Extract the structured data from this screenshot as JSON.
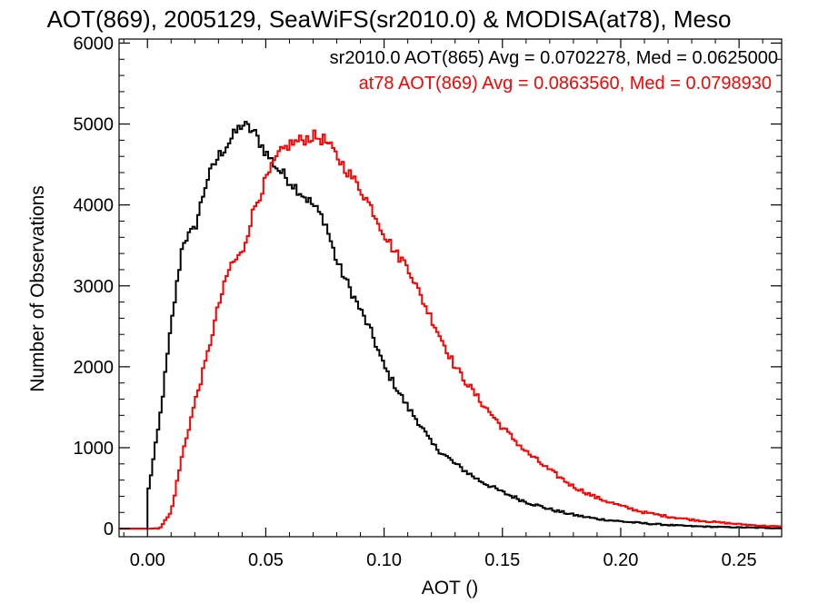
{
  "chart_data": {
    "type": "line",
    "title": "AOT(869), 2005129, SeaWiFS(sr2010.0) & MODISA(at78), Meso",
    "xlabel": "AOT ()",
    "ylabel": "Number of Observations",
    "xlim": [
      -0.012,
      0.268
    ],
    "ylim": [
      -100,
      6050
    ],
    "xticks": [
      0.0,
      0.05,
      0.1,
      0.15,
      0.2,
      0.25
    ],
    "xtick_labels": [
      "0.00",
      "0.05",
      "0.10",
      "0.15",
      "0.20",
      "0.25"
    ],
    "yticks": [
      0,
      1000,
      2000,
      3000,
      4000,
      5000,
      6000
    ],
    "ytick_labels": [
      "0",
      "1000",
      "2000",
      "3000",
      "4000",
      "5000",
      "6000"
    ],
    "grid": false,
    "legend_position": "top-right",
    "series": [
      {
        "name": "sr2010.0",
        "legend": "sr2010.0 AOT(865) Avg = 0.0702278, Med = 0.0625000",
        "color": "#000000",
        "x": [
          0.0,
          0.005,
          0.01,
          0.015,
          0.02,
          0.025,
          0.03,
          0.035,
          0.04,
          0.045,
          0.05,
          0.055,
          0.06,
          0.065,
          0.07,
          0.075,
          0.08,
          0.085,
          0.09,
          0.095,
          0.1,
          0.105,
          0.11,
          0.115,
          0.12,
          0.13,
          0.14,
          0.15,
          0.16,
          0.17,
          0.18,
          0.19,
          0.2,
          0.21,
          0.22,
          0.23,
          0.24,
          0.25,
          0.26,
          0.268
        ],
        "y": [
          400,
          1300,
          2500,
          3550,
          3700,
          4300,
          4600,
          4800,
          5000,
          4900,
          4650,
          4450,
          4300,
          4150,
          4000,
          3800,
          3300,
          3000,
          2700,
          2400,
          2000,
          1750,
          1500,
          1300,
          1050,
          800,
          600,
          450,
          330,
          240,
          170,
          120,
          90,
          65,
          45,
          30,
          22,
          15,
          10,
          5
        ]
      },
      {
        "name": "at78",
        "legend": "at78 AOT(869) Avg = 0.0863560, Med = 0.0798930",
        "color": "#ff0000",
        "x": [
          0.0,
          0.005,
          0.01,
          0.015,
          0.02,
          0.025,
          0.03,
          0.035,
          0.04,
          0.045,
          0.05,
          0.055,
          0.06,
          0.065,
          0.07,
          0.075,
          0.08,
          0.085,
          0.09,
          0.095,
          0.1,
          0.105,
          0.11,
          0.115,
          0.12,
          0.125,
          0.13,
          0.14,
          0.15,
          0.16,
          0.17,
          0.18,
          0.19,
          0.2,
          0.21,
          0.22,
          0.23,
          0.24,
          0.25,
          0.26,
          0.268
        ],
        "y": [
          0,
          0,
          200,
          950,
          1550,
          2100,
          2750,
          3250,
          3400,
          3950,
          4300,
          4600,
          4750,
          4800,
          4850,
          4800,
          4600,
          4400,
          4200,
          3950,
          3650,
          3400,
          3250,
          2900,
          2600,
          2300,
          2000,
          1600,
          1250,
          950,
          720,
          520,
          380,
          280,
          200,
          150,
          110,
          80,
          55,
          35,
          25
        ]
      }
    ]
  }
}
